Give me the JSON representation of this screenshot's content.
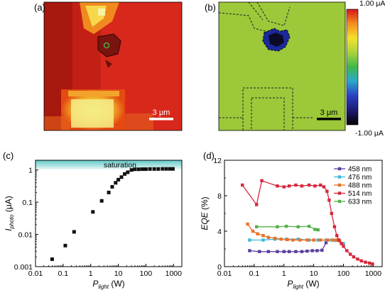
{
  "panels": {
    "a": {
      "label": "(a)",
      "scale_text": "3 μm"
    },
    "b": {
      "label": "(b)",
      "scale_text": "3 μm"
    },
    "c": {
      "label": "(c)"
    },
    "d": {
      "label": "(d)"
    }
  },
  "colorbar": {
    "max_label": "1.00 μA",
    "min_label": "-1.00 μA"
  },
  "chart_data": [
    {
      "type": "scatter",
      "panel": "c",
      "title": "",
      "xlabel": "P_light (W)",
      "ylabel": "I_photo (μA)",
      "xscale": "log",
      "yscale": "log",
      "xlim": [
        0.01,
        2000
      ],
      "ylim": [
        0.001,
        2
      ],
      "annotation": "saturation",
      "shaded_band": [
        1.05,
        2
      ],
      "x_ticks": [
        "0.01",
        "0.1",
        "1",
        "10",
        "100",
        "1000"
      ],
      "y_ticks": [
        "0.001",
        "0.01",
        "0.1",
        "1"
      ],
      "series": [
        {
          "color": "#111111",
          "x": [
            0.04,
            0.12,
            0.25,
            1.2,
            2.5,
            4.5,
            6,
            8,
            10,
            13,
            17,
            22,
            30,
            40,
            55,
            75,
            100,
            140,
            200,
            280,
            400,
            550,
            750,
            950
          ],
          "y": [
            0.0017,
            0.0045,
            0.012,
            0.05,
            0.11,
            0.2,
            0.3,
            0.4,
            0.5,
            0.6,
            0.75,
            0.85,
            1.0,
            1.05,
            1.05,
            1.06,
            1.06,
            1.07,
            1.07,
            1.07,
            1.08,
            1.08,
            1.08,
            1.08
          ]
        }
      ]
    },
    {
      "type": "line",
      "panel": "d",
      "title": "",
      "xlabel": "P_light (W)",
      "ylabel": "EQE (%)",
      "xscale": "log",
      "xlim": [
        0.01,
        2000
      ],
      "ylim": [
        0,
        12
      ],
      "x_ticks": [
        "0.01",
        "0.1",
        "1",
        "10",
        "100",
        "1000"
      ],
      "y_ticks": [
        "0",
        "4",
        "8",
        "12"
      ],
      "series": [
        {
          "name": "458 nm",
          "color": "#5b3fa0",
          "x": [
            0.07,
            0.15,
            0.3,
            0.6,
            1.0,
            1.5,
            2.5,
            4,
            6,
            9,
            13,
            19,
            26
          ],
          "y": [
            1.8,
            1.7,
            1.7,
            1.7,
            1.7,
            1.7,
            1.7,
            1.7,
            1.75,
            1.8,
            1.8,
            1.85,
            2.7
          ]
        },
        {
          "name": "476 nm",
          "color": "#41b8dc",
          "x": [
            0.07,
            0.2,
            0.5,
            1.2,
            3,
            7,
            14,
            26,
            40,
            55,
            75,
            100
          ],
          "y": [
            3.0,
            3.0,
            3.1,
            3.1,
            3.1,
            3.0,
            3.0,
            3.0,
            3.0,
            2.95,
            2.9,
            2.6
          ]
        },
        {
          "name": "488 nm",
          "color": "#e8722a",
          "x": [
            0.06,
            0.09,
            0.13,
            0.2,
            0.3,
            0.5,
            0.8,
            1.3,
            2,
            3.5,
            6,
            10,
            17,
            30,
            45,
            60,
            75,
            90
          ],
          "y": [
            4.8,
            4.0,
            3.7,
            3.5,
            3.3,
            3.2,
            3.1,
            3.05,
            3.0,
            3.0,
            3.0,
            3.0,
            3.0,
            3.0,
            3.0,
            3.0,
            2.9,
            2.6
          ]
        },
        {
          "name": "514 nm",
          "color": "#d6283c",
          "x": [
            0.04,
            0.12,
            0.18,
            0.6,
            1.0,
            1.5,
            2.5,
            4,
            7,
            11,
            17,
            22,
            28,
            33,
            40,
            50,
            60,
            70,
            85,
            100,
            130,
            170,
            220,
            300,
            400,
            550,
            750,
            950
          ],
          "y": [
            9.2,
            7.0,
            9.7,
            9.1,
            9.0,
            9.1,
            9.2,
            9.1,
            9.2,
            9.1,
            9.2,
            9.0,
            8.5,
            7.5,
            6.0,
            4.5,
            3.5,
            3.0,
            2.6,
            2.3,
            1.8,
            1.4,
            1.1,
            0.85,
            0.65,
            0.5,
            0.4,
            0.3
          ]
        },
        {
          "name": "633 nm",
          "color": "#56b04a",
          "x": [
            0.12,
            0.6,
            1.2,
            3,
            7,
            11,
            14
          ],
          "y": [
            4.5,
            4.5,
            4.55,
            4.5,
            4.55,
            4.2,
            4.15
          ]
        }
      ]
    }
  ]
}
